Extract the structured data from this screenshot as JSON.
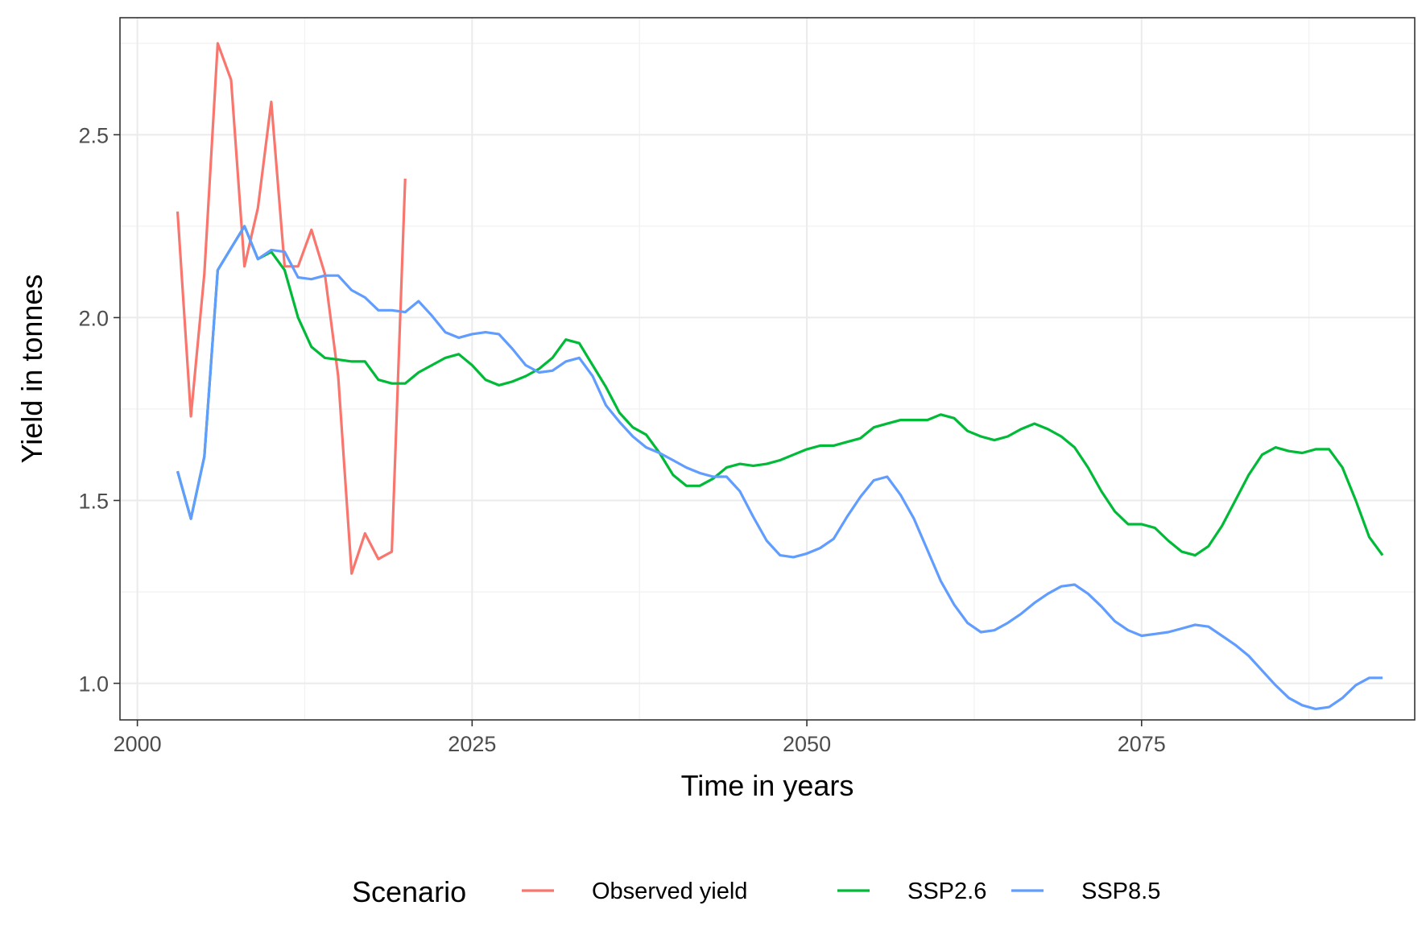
{
  "chart_data": {
    "type": "line",
    "title": "",
    "xlabel": "Time in years",
    "ylabel": "Yield in tonnes",
    "xlim": [
      1998.7,
      2095.4
    ],
    "ylim": [
      0.9,
      2.82
    ],
    "x_ticks": [
      2000,
      2025,
      2050,
      2075
    ],
    "y_ticks": [
      1.0,
      1.5,
      2.0,
      2.5
    ],
    "x_tick_labels": [
      "2000",
      "2025",
      "2050",
      "2075"
    ],
    "y_tick_labels": [
      "1.0",
      "1.5",
      "2.0",
      "2.5"
    ],
    "grid": true,
    "legend_title": "Scenario",
    "legend_position": "bottom",
    "series": [
      {
        "name": "Observed yield",
        "color": "#F8766D",
        "x": [
          2003,
          2004,
          2005,
          2006,
          2007,
          2008,
          2009,
          2010,
          2011,
          2012,
          2013,
          2014,
          2015,
          2016,
          2017,
          2018,
          2019,
          2020
        ],
        "y": [
          2.29,
          1.73,
          2.12,
          2.75,
          2.65,
          2.14,
          2.3,
          2.59,
          2.14,
          2.14,
          2.24,
          2.12,
          1.84,
          1.3,
          1.41,
          1.34,
          1.36,
          2.38
        ]
      },
      {
        "name": "SSP2.6",
        "color": "#00BA38",
        "x": [
          2003,
          2004,
          2005,
          2006,
          2007,
          2008,
          2009,
          2010,
          2011,
          2012,
          2013,
          2014,
          2015,
          2016,
          2017,
          2018,
          2019,
          2020,
          2021,
          2022,
          2023,
          2024,
          2025,
          2026,
          2027,
          2028,
          2029,
          2030,
          2031,
          2032,
          2033,
          2034,
          2035,
          2036,
          2037,
          2038,
          2039,
          2040,
          2041,
          2042,
          2043,
          2044,
          2045,
          2046,
          2047,
          2048,
          2049,
          2050,
          2051,
          2052,
          2053,
          2054,
          2055,
          2056,
          2057,
          2058,
          2059,
          2060,
          2061,
          2062,
          2063,
          2064,
          2065,
          2066,
          2067,
          2068,
          2069,
          2070,
          2071,
          2072,
          2073,
          2074,
          2075,
          2076,
          2077,
          2078,
          2079,
          2080,
          2081,
          2082,
          2083,
          2084,
          2085,
          2086,
          2087,
          2088,
          2089,
          2090,
          2091,
          2092,
          2093
        ],
        "y": [
          1.58,
          1.45,
          1.62,
          2.13,
          2.19,
          2.25,
          2.16,
          2.18,
          2.13,
          2.0,
          1.92,
          1.89,
          1.885,
          1.88,
          1.88,
          1.83,
          1.82,
          1.82,
          1.85,
          1.87,
          1.89,
          1.9,
          1.87,
          1.83,
          1.815,
          1.825,
          1.84,
          1.86,
          1.89,
          1.94,
          1.93,
          1.87,
          1.81,
          1.74,
          1.7,
          1.68,
          1.63,
          1.57,
          1.54,
          1.54,
          1.56,
          1.59,
          1.6,
          1.595,
          1.6,
          1.61,
          1.625,
          1.64,
          1.65,
          1.65,
          1.66,
          1.67,
          1.7,
          1.71,
          1.72,
          1.72,
          1.72,
          1.735,
          1.725,
          1.69,
          1.675,
          1.665,
          1.675,
          1.695,
          1.71,
          1.695,
          1.675,
          1.645,
          1.59,
          1.525,
          1.47,
          1.435,
          1.435,
          1.425,
          1.39,
          1.36,
          1.35,
          1.375,
          1.43,
          1.5,
          1.57,
          1.625,
          1.645,
          1.635,
          1.63,
          1.64,
          1.64,
          1.59,
          1.5,
          1.4,
          1.35
        ]
      },
      {
        "name": "SSP8.5",
        "color": "#619CFF",
        "x": [
          2003,
          2004,
          2005,
          2006,
          2007,
          2008,
          2009,
          2010,
          2011,
          2012,
          2013,
          2014,
          2015,
          2016,
          2017,
          2018,
          2019,
          2020,
          2021,
          2022,
          2023,
          2024,
          2025,
          2026,
          2027,
          2028,
          2029,
          2030,
          2031,
          2032,
          2033,
          2034,
          2035,
          2036,
          2037,
          2038,
          2039,
          2040,
          2041,
          2042,
          2043,
          2044,
          2045,
          2046,
          2047,
          2048,
          2049,
          2050,
          2051,
          2052,
          2053,
          2054,
          2055,
          2056,
          2057,
          2058,
          2059,
          2060,
          2061,
          2062,
          2063,
          2064,
          2065,
          2066,
          2067,
          2068,
          2069,
          2070,
          2071,
          2072,
          2073,
          2074,
          2075,
          2076,
          2077,
          2078,
          2079,
          2080,
          2081,
          2082,
          2083,
          2084,
          2085,
          2086,
          2087,
          2088,
          2089,
          2090,
          2091,
          2092,
          2093
        ],
        "y": [
          1.58,
          1.45,
          1.62,
          2.13,
          2.19,
          2.25,
          2.16,
          2.185,
          2.18,
          2.11,
          2.105,
          2.115,
          2.115,
          2.075,
          2.055,
          2.02,
          2.02,
          2.015,
          2.045,
          2.005,
          1.96,
          1.945,
          1.955,
          1.96,
          1.955,
          1.915,
          1.87,
          1.85,
          1.855,
          1.88,
          1.89,
          1.84,
          1.76,
          1.715,
          1.675,
          1.645,
          1.63,
          1.61,
          1.59,
          1.575,
          1.565,
          1.565,
          1.525,
          1.455,
          1.39,
          1.35,
          1.345,
          1.355,
          1.37,
          1.395,
          1.455,
          1.51,
          1.555,
          1.565,
          1.515,
          1.45,
          1.365,
          1.28,
          1.215,
          1.165,
          1.14,
          1.145,
          1.165,
          1.19,
          1.22,
          1.245,
          1.265,
          1.27,
          1.245,
          1.21,
          1.17,
          1.145,
          1.13,
          1.135,
          1.14,
          1.15,
          1.16,
          1.155,
          1.13,
          1.105,
          1.075,
          1.035,
          0.995,
          0.96,
          0.94,
          0.93,
          0.935,
          0.96,
          0.995,
          1.015,
          1.015
        ]
      }
    ]
  }
}
